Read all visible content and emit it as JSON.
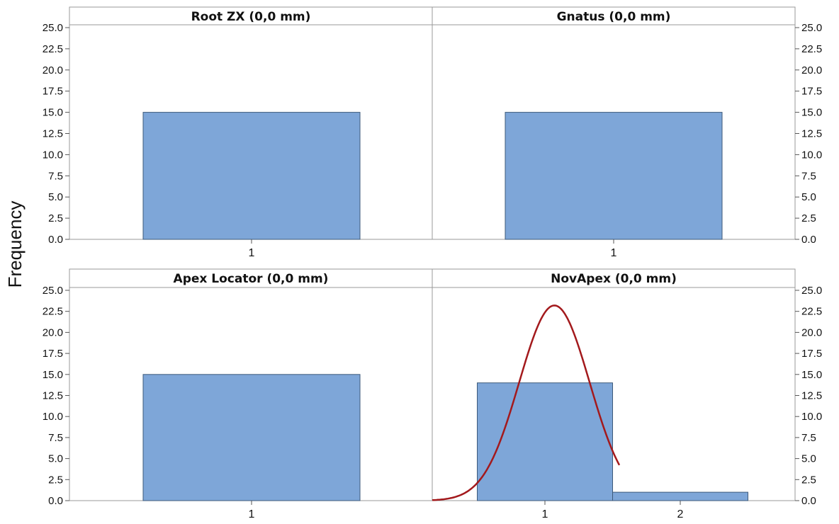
{
  "chart_data": {
    "type": "bar",
    "ylabel": "Frequency",
    "ylim": [
      0,
      25
    ],
    "yticks": [
      "0.0",
      "2.5",
      "5.0",
      "7.5",
      "10.0",
      "12.5",
      "15.0",
      "17.5",
      "20.0",
      "22.5",
      "25.0"
    ],
    "colors": {
      "bar": "#7ea6d8",
      "bar_edge": "#3d5a7a",
      "curve": "#a3191c",
      "panel_border": "#9a9a9a"
    },
    "panels": [
      {
        "title": "Root ZX (0,0 mm)",
        "categories": [
          "1"
        ],
        "values": [
          15
        ]
      },
      {
        "title": "Gnatus (0,0 mm)",
        "categories": [
          "1"
        ],
        "values": [
          15
        ]
      },
      {
        "title": "Apex Locator (0,0 mm)",
        "categories": [
          "1"
        ],
        "values": [
          15
        ]
      },
      {
        "title": "NovApex (0,0 mm)",
        "categories": [
          "1",
          "2"
        ],
        "values": [
          14,
          1
        ],
        "fit_curve": {
          "type": "normal",
          "mean": 1.07,
          "sd": 0.26,
          "peak": 23.2
        }
      }
    ]
  }
}
